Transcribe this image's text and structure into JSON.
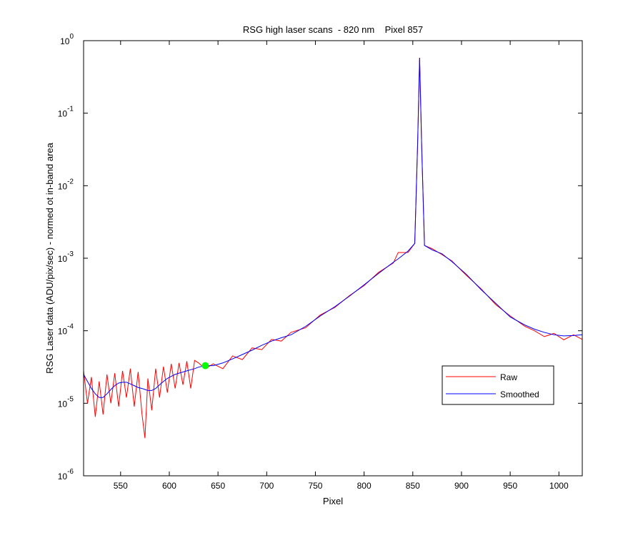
{
  "chart_data": {
    "type": "line",
    "title": "RSG high laser scans  - 820 nm    Pixel 857",
    "x_label": "Pixel",
    "y_label": "RSG Laser data (ADU/pix/sec) - normed ot in-band area",
    "log_y": true,
    "legend": "southeast",
    "xlim": [
      512,
      1024
    ],
    "xticks": [
      550,
      600,
      650,
      700,
      750,
      800,
      850,
      900,
      950,
      1000
    ],
    "ylim": [
      1e-06,
      1
    ],
    "yticks": [
      {
        "value": 1e-06,
        "label": "10",
        "exponent": "-6"
      },
      {
        "value": 1e-05,
        "label": "10",
        "exponent": "-5"
      },
      {
        "value": 0.0001,
        "label": "10",
        "exponent": "-4"
      },
      {
        "value": 0.001,
        "label": "10",
        "exponent": "-3"
      },
      {
        "value": 0.01,
        "label": "10",
        "exponent": "-2"
      },
      {
        "value": 0.1,
        "label": "10",
        "exponent": "-1"
      },
      {
        "value": 1,
        "label": "10",
        "exponent": "0"
      }
    ],
    "x": [
      512,
      516,
      520,
      524,
      528,
      532,
      536,
      540,
      544,
      548,
      552,
      556,
      560,
      564,
      568,
      572,
      575,
      578,
      582,
      586,
      590,
      594,
      598,
      602,
      606,
      610,
      614,
      618,
      622,
      626,
      630,
      637,
      645,
      655,
      665,
      675,
      685,
      695,
      705,
      715,
      725,
      740,
      755,
      770,
      785,
      800,
      815,
      830,
      835,
      845,
      852,
      855,
      857,
      859,
      862,
      870,
      880,
      890,
      905,
      920,
      935,
      950,
      965,
      975,
      985,
      995,
      1005,
      1015,
      1024
    ],
    "series": [
      {
        "name": "Raw",
        "color": "#ff0000",
        "values": [
          2.8e-05,
          1e-05,
          2.3e-05,
          6.5e-06,
          2e-05,
          7e-06,
          2.5e-05,
          1e-05,
          2.6e-05,
          9e-06,
          2.8e-05,
          1.2e-05,
          3e-05,
          9e-06,
          2.7e-05,
          7e-06,
          3.3e-06,
          2.2e-05,
          8e-06,
          3e-05,
          1.2e-05,
          3.2e-05,
          1.4e-05,
          3.5e-05,
          1.6e-05,
          3.6e-05,
          1.8e-05,
          3.8e-05,
          1.6e-05,
          3.9e-05,
          3.6e-05,
          3e-05,
          3.5e-05,
          3e-05,
          4.5e-05,
          4e-05,
          5.8e-05,
          5.5e-05,
          7.6e-05,
          7.2e-05,
          9.5e-05,
          0.00011,
          0.000165,
          0.00021,
          0.000305,
          0.00042,
          0.00064,
          0.00086,
          0.0012,
          0.0012,
          0.0016,
          0.04,
          0.58,
          0.04,
          0.0015,
          0.00135,
          0.00112,
          0.00092,
          0.00058,
          0.00038,
          0.00023,
          0.00016,
          0.000115,
          0.0001,
          8.3e-05,
          9.2e-05,
          7.5e-05,
          8.8e-05,
          7.6e-05
        ]
      },
      {
        "name": "Smoothed",
        "color": "#0000ff",
        "values": [
          2.5e-05,
          2e-05,
          1.6e-05,
          1.35e-05,
          1.2e-05,
          1.2e-05,
          1.35e-05,
          1.55e-05,
          1.75e-05,
          1.9e-05,
          1.95e-05,
          1.95e-05,
          1.85e-05,
          1.75e-05,
          1.65e-05,
          1.6e-05,
          1.55e-05,
          1.5e-05,
          1.5e-05,
          1.6e-05,
          1.8e-05,
          2e-05,
          2.2e-05,
          2.35e-05,
          2.5e-05,
          2.6e-05,
          2.7e-05,
          2.8e-05,
          2.9e-05,
          3e-05,
          3.15e-05,
          3.3e-05,
          3.3e-05,
          3.6e-05,
          4.1e-05,
          4.7e-05,
          5.4e-05,
          6.3e-05,
          7.2e-05,
          8e-05,
          8.8e-05,
          0.000115,
          0.00016,
          0.000215,
          0.0003,
          0.00043,
          0.00062,
          0.00088,
          0.00098,
          0.00125,
          0.0016,
          0.04,
          0.58,
          0.04,
          0.0015,
          0.0013,
          0.00115,
          0.0009,
          0.0006,
          0.00037,
          0.00024,
          0.000155,
          0.00012,
          0.000105,
          9.5e-05,
          8.8e-05,
          8.5e-05,
          8.6e-05,
          8.8e-05
        ]
      }
    ],
    "markers": [
      {
        "x": 637,
        "y": 3.3e-05,
        "color": "#00ff00"
      }
    ]
  }
}
